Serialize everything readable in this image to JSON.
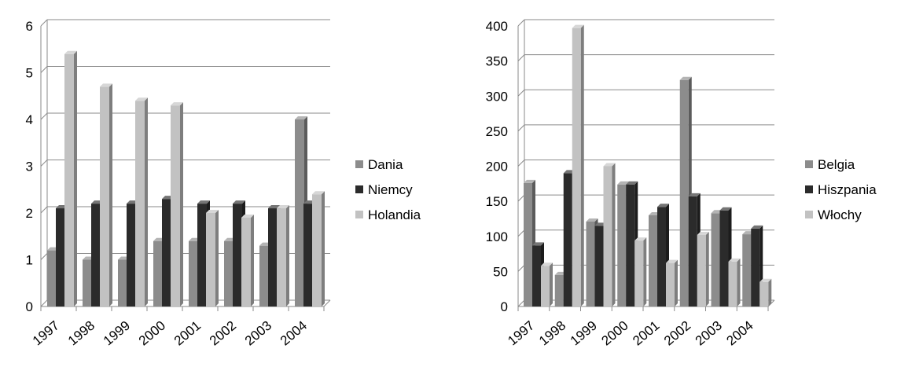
{
  "chart_data": [
    {
      "type": "bar",
      "title": "",
      "xlabel": "",
      "ylabel": "",
      "categories": [
        "1997",
        "1998",
        "1999",
        "2000",
        "2001",
        "2002",
        "2003",
        "2004"
      ],
      "ylim": [
        0,
        6
      ],
      "yticks": [
        "0",
        "1",
        "2",
        "3",
        "4",
        "5",
        "6"
      ],
      "grid": true,
      "legend_position": "right",
      "series": [
        {
          "name": "Dania",
          "color": "#8c8c8c",
          "values": [
            1.2,
            1.0,
            1.0,
            1.4,
            1.4,
            1.4,
            1.3,
            4.0
          ]
        },
        {
          "name": "Niemcy",
          "color": "#2b2b2b",
          "values": [
            2.1,
            2.2,
            2.2,
            2.3,
            2.2,
            2.2,
            2.1,
            2.2
          ]
        },
        {
          "name": "Holandia",
          "color": "#c2c2c2",
          "values": [
            5.4,
            4.7,
            4.4,
            4.3,
            2.0,
            1.9,
            2.1,
            2.4
          ]
        }
      ]
    },
    {
      "type": "bar",
      "title": "",
      "xlabel": "",
      "ylabel": "",
      "categories": [
        "1997",
        "1998",
        "1999",
        "2000",
        "2001",
        "2002",
        "2003",
        "2004"
      ],
      "ylim": [
        0,
        400
      ],
      "yticks": [
        "0",
        "50",
        "100",
        "150",
        "200",
        "250",
        "300",
        "350",
        "400"
      ],
      "grid": true,
      "legend_position": "right",
      "series": [
        {
          "name": "Belgia",
          "color": "#8c8c8c",
          "values": [
            176,
            45,
            121,
            174,
            130,
            323,
            133,
            103
          ]
        },
        {
          "name": "Hiszpania",
          "color": "#2b2b2b",
          "values": [
            87,
            190,
            115,
            174,
            142,
            157,
            137,
            111
          ]
        },
        {
          "name": "Włochy",
          "color": "#c2c2c2",
          "values": [
            58,
            397,
            200,
            94,
            62,
            102,
            64,
            35
          ]
        }
      ]
    }
  ]
}
